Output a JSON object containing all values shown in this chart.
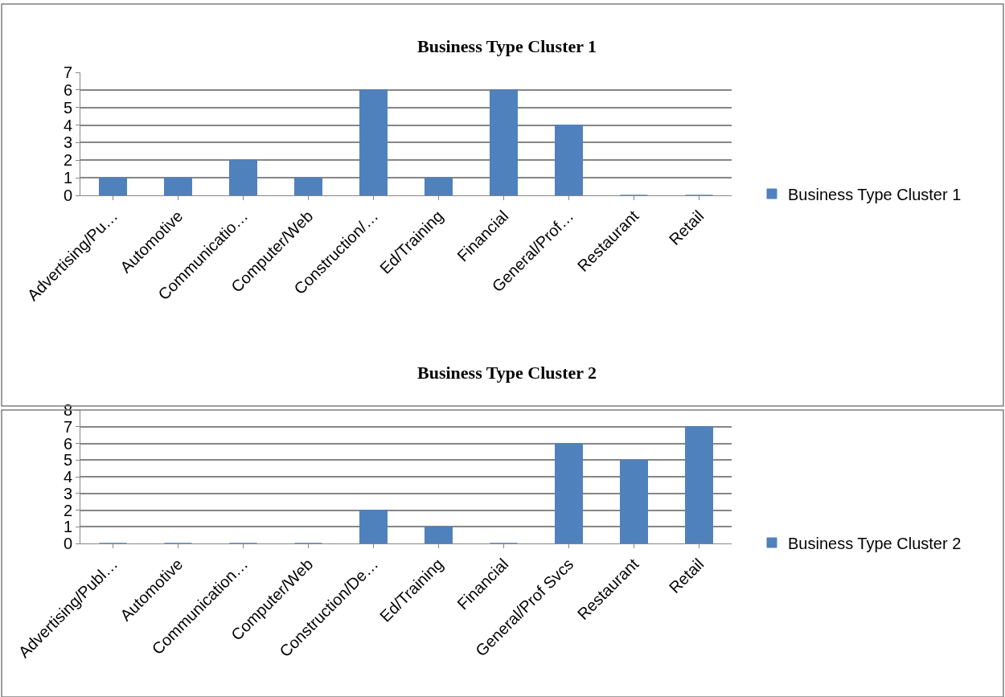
{
  "chart_data": [
    {
      "type": "bar",
      "title": "Business Type Cluster 1",
      "categories": [
        "Advertising/Pu…",
        "Automotive",
        "Communicatio…",
        "Computer/Web",
        "Construction/…",
        "Ed/Training",
        "Financial",
        "General/Prof…",
        "Restaurant",
        "Retail"
      ],
      "series": [
        {
          "name": "Business Type Cluster 1",
          "color": "#4f81bd",
          "values": [
            1,
            1,
            2,
            1,
            6,
            1,
            6,
            4,
            0,
            0
          ]
        }
      ],
      "ylim": [
        0,
        7
      ],
      "yticks": [
        0,
        1,
        2,
        3,
        4,
        5,
        6,
        7
      ],
      "grid": "y",
      "legend": "right"
    },
    {
      "type": "bar",
      "title": "Business Type Cluster 2",
      "categories": [
        "Advertising/Publ…",
        "Automotive",
        "Communication…",
        "Computer/Web",
        "Construction/De…",
        "Ed/Training",
        "Financial",
        "General/Prof Svcs",
        "Restaurant",
        "Retail"
      ],
      "series": [
        {
          "name": "Business Type Cluster 2",
          "color": "#4f81bd",
          "values": [
            0,
            0,
            0,
            0,
            2,
            1,
            0,
            6,
            5,
            7
          ]
        }
      ],
      "ylim": [
        0,
        8
      ],
      "yticks": [
        0,
        1,
        2,
        3,
        4,
        5,
        6,
        7,
        8
      ],
      "grid": "y",
      "legend": "right"
    }
  ]
}
